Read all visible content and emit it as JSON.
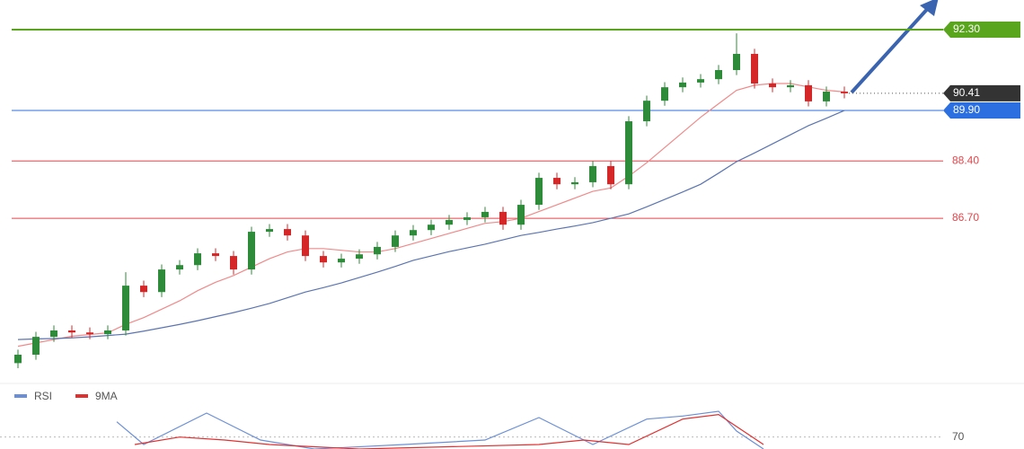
{
  "chart_data": {
    "type": "candlestick",
    "ylim": [
      81.85,
      93.18
    ],
    "levels": [
      {
        "value": 92.3,
        "label": "92.30",
        "color": "#5aa51e",
        "style": "box"
      },
      {
        "value": 90.41,
        "label": "90.41",
        "color": "#333333",
        "style": "dotted-box"
      },
      {
        "value": 89.9,
        "label": "89.90",
        "color": "#2b6fe0",
        "style": "box"
      },
      {
        "value": 88.4,
        "label": "88.40",
        "color": "#e8444a",
        "style": "text"
      },
      {
        "value": 86.7,
        "label": "86.70",
        "color": "#e8444a",
        "style": "text"
      }
    ],
    "up_color": "#2e8b3a",
    "down_color": "#d62728",
    "open": [
      82.4,
      82.65,
      83.18,
      83.37,
      83.31,
      83.26,
      83.37,
      84.7,
      84.51,
      85.18,
      85.31,
      85.66,
      85.58,
      85.18,
      86.3,
      86.38,
      86.19,
      85.58,
      85.39,
      85.5,
      85.63,
      85.85,
      86.19,
      86.35,
      86.51,
      86.65,
      86.73,
      86.89,
      86.51,
      87.1,
      87.9,
      87.71,
      87.77,
      88.25,
      87.71,
      89.58,
      90.19,
      90.59,
      90.73,
      90.83,
      91.1,
      91.58,
      90.7,
      90.59,
      90.65,
      90.17,
      90.46
    ],
    "high": [
      82.8,
      83.33,
      83.52,
      83.52,
      83.46,
      83.52,
      85.1,
      84.85,
      85.33,
      85.46,
      85.81,
      85.81,
      85.73,
      86.45,
      86.53,
      86.53,
      86.34,
      85.73,
      85.65,
      85.78,
      86.0,
      86.34,
      86.5,
      86.66,
      86.8,
      86.88,
      87.04,
      87.04,
      87.25,
      88.05,
      88.05,
      87.92,
      88.4,
      88.4,
      89.73,
      90.34,
      90.74,
      90.88,
      90.98,
      91.25,
      92.19,
      91.73,
      90.85,
      90.8,
      90.8,
      90.61,
      90.61
    ],
    "low": [
      82.25,
      82.5,
      83.03,
      83.16,
      83.11,
      83.11,
      83.22,
      84.36,
      84.36,
      85.03,
      85.16,
      85.43,
      85.03,
      85.03,
      86.15,
      86.04,
      85.43,
      85.24,
      85.24,
      85.35,
      85.48,
      85.7,
      86.04,
      86.2,
      86.36,
      86.5,
      86.58,
      86.36,
      86.36,
      86.95,
      87.56,
      87.56,
      87.62,
      87.56,
      87.56,
      89.43,
      90.04,
      90.44,
      90.58,
      90.68,
      90.95,
      90.55,
      90.44,
      90.44,
      90.02,
      90.02,
      90.26
    ],
    "close": [
      82.65,
      83.18,
      83.37,
      83.31,
      83.26,
      83.37,
      84.7,
      84.51,
      85.18,
      85.31,
      85.66,
      85.58,
      85.18,
      86.3,
      86.38,
      86.19,
      85.58,
      85.39,
      85.5,
      85.63,
      85.85,
      86.19,
      86.35,
      86.51,
      86.65,
      86.73,
      86.89,
      86.51,
      87.1,
      87.9,
      87.71,
      87.77,
      88.25,
      87.71,
      89.58,
      90.19,
      90.59,
      90.73,
      90.83,
      91.1,
      91.58,
      90.7,
      90.59,
      90.65,
      90.17,
      90.46,
      90.41
    ],
    "overlays": [
      {
        "color": "#f08a8a",
        "values": [
          82.9,
          83.0,
          83.1,
          83.2,
          83.25,
          83.3,
          83.55,
          83.75,
          84.0,
          84.25,
          84.55,
          84.8,
          85.0,
          85.25,
          85.5,
          85.7,
          85.8,
          85.8,
          85.75,
          85.7,
          85.7,
          85.8,
          85.95,
          86.1,
          86.25,
          86.4,
          86.55,
          86.6,
          86.7,
          86.9,
          87.1,
          87.3,
          87.5,
          87.6,
          87.95,
          88.35,
          88.8,
          89.25,
          89.7,
          90.1,
          90.5,
          90.65,
          90.7,
          90.7,
          90.6,
          90.5,
          90.45
        ]
      },
      {
        "color": "#5b74b0",
        "values": [
          83.1,
          83.12,
          83.13,
          83.15,
          83.18,
          83.22,
          83.26,
          83.35,
          83.45,
          83.55,
          83.66,
          83.78,
          83.9,
          84.03,
          84.17,
          84.34,
          84.51,
          84.64,
          84.78,
          84.94,
          85.1,
          85.27,
          85.45,
          85.58,
          85.71,
          85.82,
          85.93,
          86.06,
          86.19,
          86.28,
          86.38,
          86.47,
          86.57,
          86.7,
          86.83,
          87.04,
          87.26,
          87.48,
          87.71,
          88.04,
          88.38,
          88.64,
          88.91,
          89.18,
          89.45,
          89.67,
          89.9
        ]
      }
    ],
    "indicator": {
      "ylim": [
        66,
        84
      ],
      "yticks": [
        70
      ],
      "series": [
        {
          "name": "RSI",
          "color": "#6b8fd6",
          "x": [
            5.5,
            7,
            10.5,
            13.5,
            16.5,
            21.5,
            26,
            29,
            32,
            35,
            37,
            39,
            40,
            41.5
          ],
          "values": [
            75.1,
            67.5,
            78,
            69,
            66,
            67.5,
            69,
            76.5,
            67.5,
            76,
            77,
            78.6,
            72,
            66
          ]
        },
        {
          "name": "9MA",
          "color": "#e03030",
          "x": [
            6.5,
            9,
            11.5,
            14,
            19,
            29,
            31.5,
            34,
            37,
            39,
            41.5
          ],
          "values": [
            67.5,
            70,
            69,
            67.5,
            66,
            67.5,
            69,
            67.5,
            76,
            77.5,
            67.5
          ]
        }
      ]
    }
  }
}
